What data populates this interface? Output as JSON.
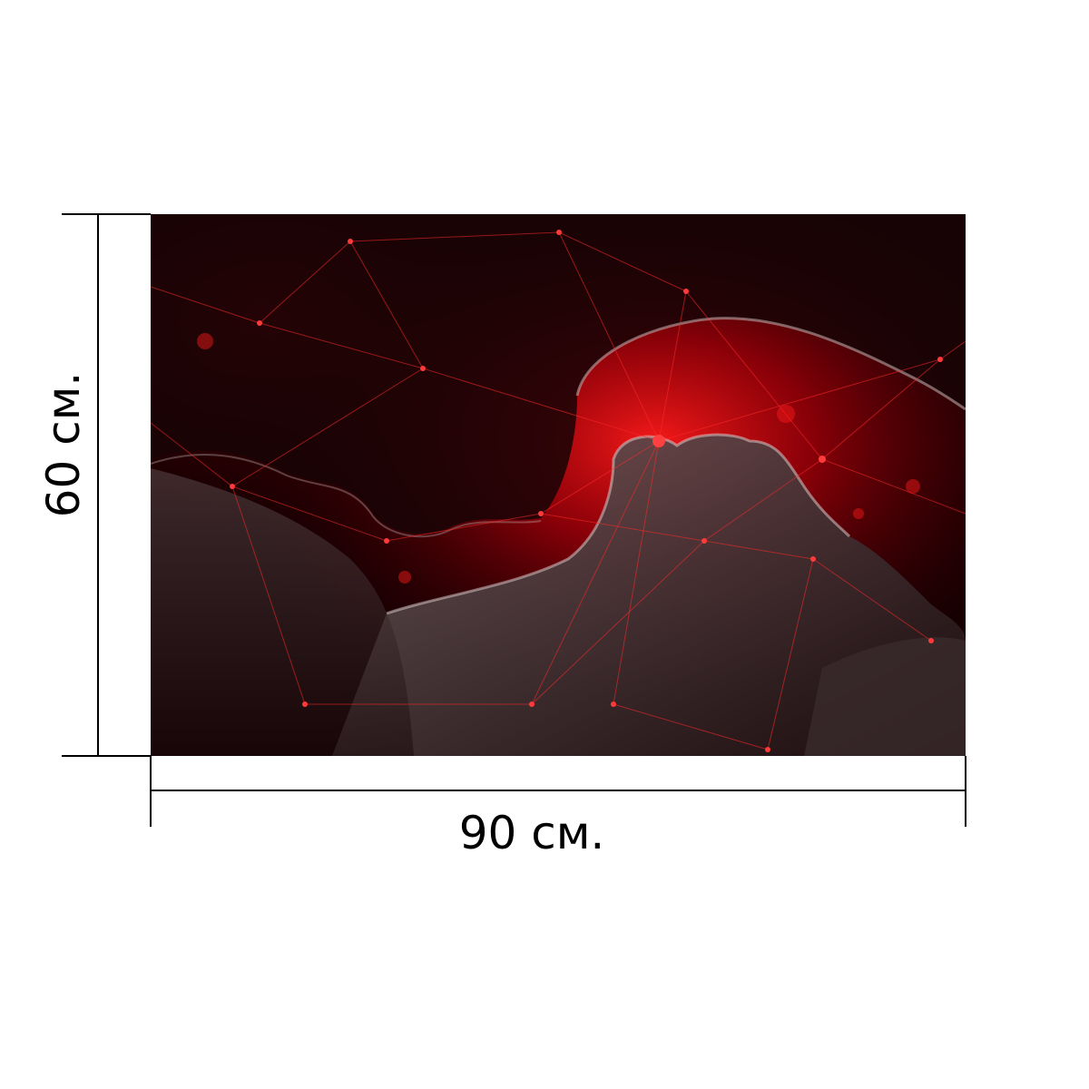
{
  "dimensions": {
    "width_label": "90 см.",
    "height_label": "60 см."
  },
  "artwork": {
    "icon": "embracing-couple-silhouette-with-red-network-lines",
    "colors": {
      "background": "#140002",
      "accent": "#e0101a",
      "highlight": "#ff2a2a",
      "silhouette": "#2a1416"
    }
  }
}
